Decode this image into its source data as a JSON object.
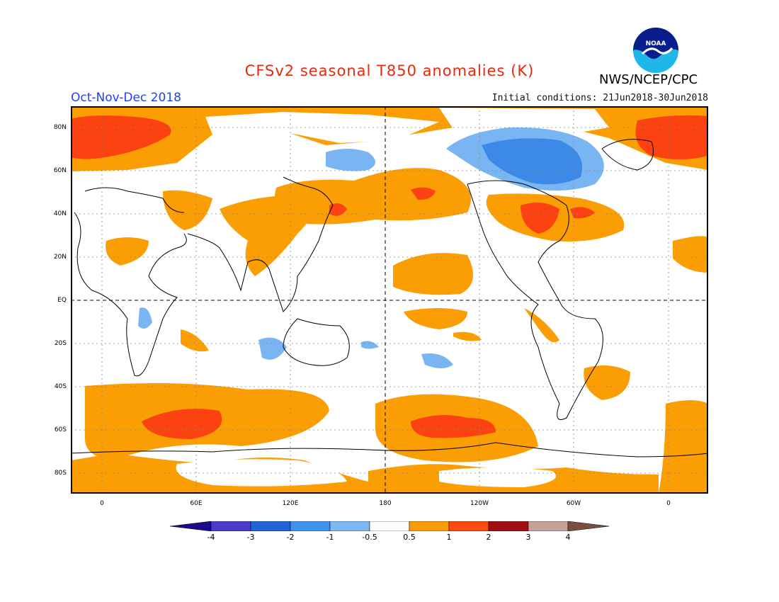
{
  "title": "CFSv2 seasonal T850 anomalies (K)",
  "season": "Oct-Nov-Dec 2018",
  "initial_conditions": "Initial conditions: 21Jun2018-30Jun2018",
  "agency": "NWS/NCEP/CPC",
  "logo_text": "NOAA",
  "lat_labels": [
    "80N",
    "60N",
    "40N",
    "20N",
    "EQ",
    "20S",
    "40S",
    "60S",
    "80S"
  ],
  "lon_labels": [
    "0",
    "60E",
    "120E",
    "180",
    "120W",
    "60W",
    "0"
  ],
  "colorbar": {
    "labels": [
      "-4",
      "-3",
      "-2",
      "-1",
      "-0.5",
      "0.5",
      "1",
      "2",
      "3",
      "4"
    ],
    "colors": [
      "#1e0a8c",
      "#4b3ccc",
      "#1f64d4",
      "#3f93ea",
      "#7cb8f2",
      "#ffffff",
      "#f99c07",
      "#fb4c10",
      "#a00f12",
      "#c8a29a",
      "#7a4e42"
    ]
  },
  "colors": {
    "warm": "#fa9e04",
    "hot": "#fb4210",
    "cool": "#7ab5f3",
    "cold": "#3d89e8",
    "title": "#e8290b",
    "season": "#2040ff"
  }
}
